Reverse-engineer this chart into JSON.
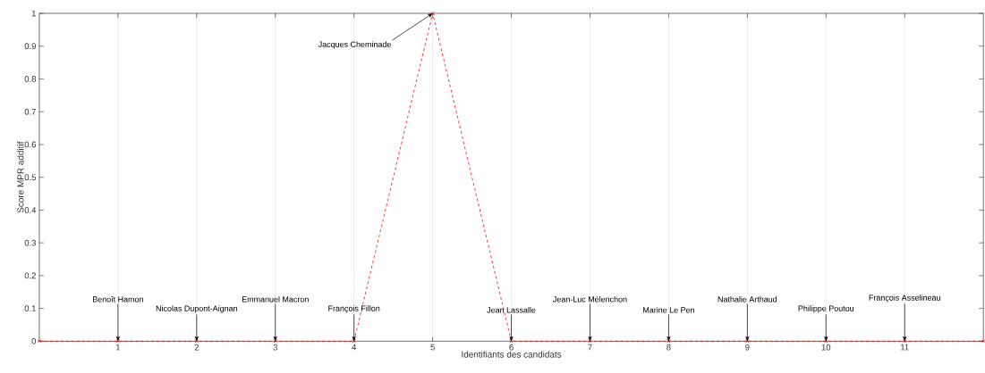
{
  "chart_data": {
    "type": "line",
    "xlabel": "Identifiants des candidats",
    "ylabel": "Score MPR additif",
    "x": [
      0,
      1,
      2,
      3,
      4,
      5,
      6,
      7,
      8,
      9,
      10,
      11,
      12
    ],
    "series": [
      {
        "color": "#ff0000",
        "values": [
          0,
          0,
          0,
          0,
          0,
          1,
          0,
          0,
          0,
          0,
          0,
          0,
          0
        ]
      }
    ],
    "marker": "cross",
    "line_style": "dashed",
    "grid": "x",
    "xlim": [
      0,
      12
    ],
    "xticks": [
      1,
      2,
      3,
      4,
      5,
      6,
      7,
      8,
      9,
      10,
      11
    ],
    "ylim": [
      0,
      1
    ],
    "yticks": [
      0,
      0.1,
      0.2,
      0.3,
      0.4,
      0.5,
      0.6,
      0.7,
      0.8,
      0.9,
      1
    ],
    "annotations": [
      {
        "text": "Benoît Hamon",
        "x": 1,
        "y": 0
      },
      {
        "text": "Nicolas Dupont-Aignan",
        "x": 2,
        "y": 0
      },
      {
        "text": "Emmanuel Macron",
        "x": 3,
        "y": 0
      },
      {
        "text": "François Fillon",
        "x": 4,
        "y": 0
      },
      {
        "text": "Jacques Cheminade",
        "x": 5,
        "y": 1
      },
      {
        "text": "Jean Lassalle",
        "x": 6,
        "y": 0
      },
      {
        "text": "Jean-Luc Mélenchon",
        "x": 7,
        "y": 0
      },
      {
        "text": "Marine Le Pen",
        "x": 8,
        "y": 0
      },
      {
        "text": "Nathalie Arthaud",
        "x": 9,
        "y": 0
      },
      {
        "text": "Philippe Poutou",
        "x": 10,
        "y": 0
      },
      {
        "text": "François Asselineau",
        "x": 11,
        "y": 0
      }
    ]
  }
}
